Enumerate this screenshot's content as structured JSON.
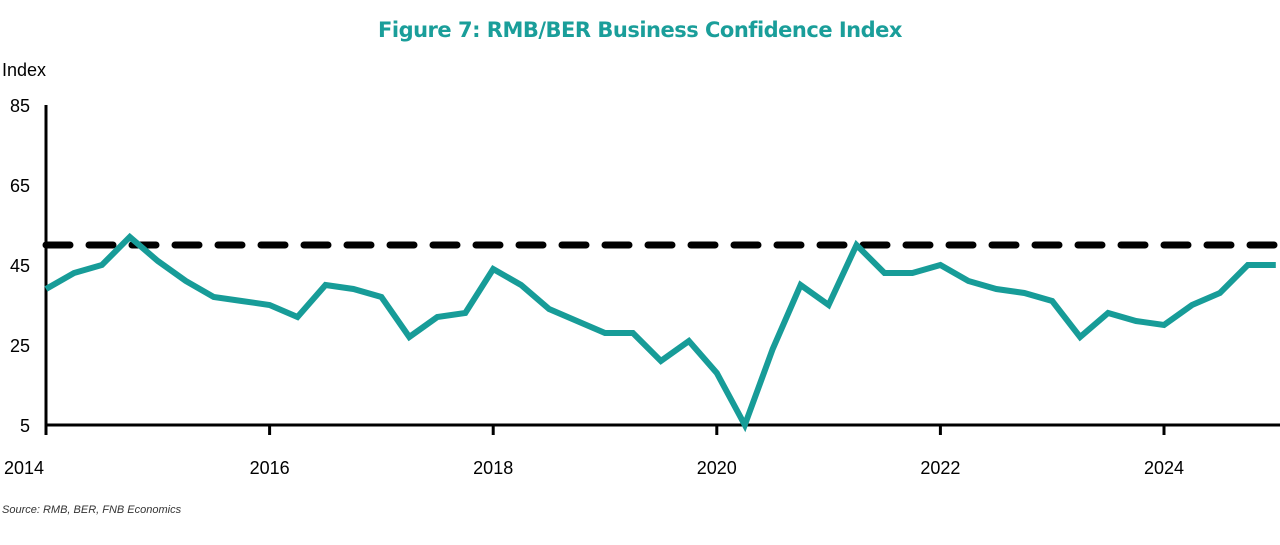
{
  "colors": {
    "title": "#1a9e9a",
    "series": "#179c98",
    "reference_line": "#000000",
    "axis": "#000000"
  },
  "source": "Source: RMB, BER, FNB Economics",
  "chart_data": {
    "type": "line",
    "title": "Figure 7: RMB/BER Business Confidence Index",
    "xlabel": "",
    "ylabel": "Index",
    "ylim": [
      5,
      85
    ],
    "xlim": [
      2014,
      2025
    ],
    "yticks": [
      5,
      25,
      45,
      65,
      85
    ],
    "xticks": [
      2014,
      2016,
      2018,
      2020,
      2022,
      2024
    ],
    "grid": false,
    "legend": "none",
    "reference_line": {
      "value": 50,
      "style": "dashed"
    },
    "series": [
      {
        "name": "RMB/BER Business Confidence Index",
        "frequency": "quarterly",
        "x": [
          2014.0,
          2014.25,
          2014.5,
          2014.75,
          2015.0,
          2015.25,
          2015.5,
          2015.75,
          2016.0,
          2016.25,
          2016.5,
          2016.75,
          2017.0,
          2017.25,
          2017.5,
          2017.75,
          2018.0,
          2018.25,
          2018.5,
          2018.75,
          2019.0,
          2019.25,
          2019.5,
          2019.75,
          2020.0,
          2020.25,
          2020.5,
          2020.75,
          2021.0,
          2021.25,
          2021.5,
          2021.75,
          2022.0,
          2022.25,
          2022.5,
          2022.75,
          2023.0,
          2023.25,
          2023.5,
          2023.75,
          2024.0,
          2024.25,
          2024.5,
          2024.75,
          2025.0
        ],
        "values": [
          39,
          43,
          45,
          52,
          46,
          41,
          37,
          36,
          35,
          32,
          40,
          39,
          37,
          27,
          32,
          33,
          44,
          40,
          34,
          31,
          28,
          28,
          21,
          26,
          18,
          5,
          24,
          40,
          35,
          50,
          43,
          43,
          45,
          41,
          39,
          38,
          36,
          27,
          33,
          31,
          30,
          35,
          38,
          45,
          45
        ]
      }
    ]
  }
}
